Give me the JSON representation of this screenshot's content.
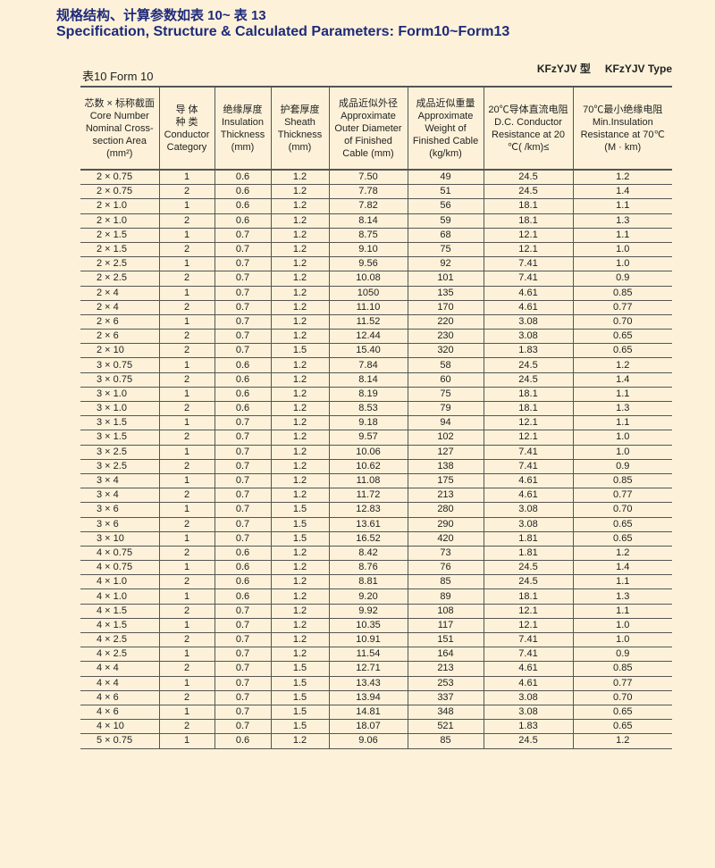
{
  "title_cn": "规格结构、计算参数如表 10~ 表 13",
  "title_en": "Specification, Structure & Calculated Parameters: Form10~Form13",
  "caption": "表10   Form 10",
  "type_cn": "KFzYJV 型",
  "type_en": "KFzYJV Type",
  "headers": [
    "芯数 × 标称截面\nCore Number\nNominal Cross-\nsection Area\n(mm²)",
    "导 体\n种 类\nConductor\nCategory",
    "绝缘厚度\nInsulation\nThickness\n(mm)",
    "护套厚度\nSheath\nThickness\n(mm)",
    "成品近似外径\nApproximate\nOuter Diameter\nof Finished\nCable (mm)",
    "成品近似重量\nApproximate\nWeight of\nFinished Cable\n(kg/km)",
    "20℃导体直流电阻\nD.C. Conductor\nResistance at 20\n℃(  /km)≤",
    "70℃最小绝缘电阻\nMin.Insulation\nResistance at 70℃\n(M   · km)"
  ],
  "rows": [
    [
      "2 × 0.75",
      "1",
      "0.6",
      "1.2",
      "7.50",
      "49",
      "24.5",
      "1.2"
    ],
    [
      "2 × 0.75",
      "2",
      "0.6",
      "1.2",
      "7.78",
      "51",
      "24.5",
      "1.4"
    ],
    [
      "2 × 1.0",
      "1",
      "0.6",
      "1.2",
      "7.82",
      "56",
      "18.1",
      "1.1"
    ],
    [
      "2 × 1.0",
      "2",
      "0.6",
      "1.2",
      "8.14",
      "59",
      "18.1",
      "1.3"
    ],
    [
      "2 × 1.5",
      "1",
      "0.7",
      "1.2",
      "8.75",
      "68",
      "12.1",
      "1.1"
    ],
    [
      "2 × 1.5",
      "2",
      "0.7",
      "1.2",
      "9.10",
      "75",
      "12.1",
      "1.0"
    ],
    [
      "2 × 2.5",
      "1",
      "0.7",
      "1.2",
      "9.56",
      "92",
      "7.41",
      "1.0"
    ],
    [
      "2 × 2.5",
      "2",
      "0.7",
      "1.2",
      "10.08",
      "101",
      "7.41",
      "0.9"
    ],
    [
      "2 × 4",
      "1",
      "0.7",
      "1.2",
      "1050",
      "135",
      "4.61",
      "0.85"
    ],
    [
      "2 × 4",
      "2",
      "0.7",
      "1.2",
      "11.10",
      "170",
      "4.61",
      "0.77"
    ],
    [
      "2 × 6",
      "1",
      "0.7",
      "1.2",
      "11.52",
      "220",
      "3.08",
      "0.70"
    ],
    [
      "2 × 6",
      "2",
      "0.7",
      "1.2",
      "12.44",
      "230",
      "3.08",
      "0.65"
    ],
    [
      "2 × 10",
      "2",
      "0.7",
      "1.5",
      "15.40",
      "320",
      "1.83",
      "0.65"
    ],
    [
      "3 × 0.75",
      "1",
      "0.6",
      "1.2",
      "7.84",
      "58",
      "24.5",
      "1.2"
    ],
    [
      "3 × 0.75",
      "2",
      "0.6",
      "1.2",
      "8.14",
      "60",
      "24.5",
      "1.4"
    ],
    [
      "3 × 1.0",
      "1",
      "0.6",
      "1.2",
      "8.19",
      "75",
      "18.1",
      "1.1"
    ],
    [
      "3 × 1.0",
      "2",
      "0.6",
      "1.2",
      "8.53",
      "79",
      "18.1",
      "1.3"
    ],
    [
      "3 × 1.5",
      "1",
      "0.7",
      "1.2",
      "9.18",
      "94",
      "12.1",
      "1.1"
    ],
    [
      "3 × 1.5",
      "2",
      "0.7",
      "1.2",
      "9.57",
      "102",
      "12.1",
      "1.0"
    ],
    [
      "3 × 2.5",
      "1",
      "0.7",
      "1.2",
      "10.06",
      "127",
      "7.41",
      "1.0"
    ],
    [
      "3 × 2.5",
      "2",
      "0.7",
      "1.2",
      "10.62",
      "138",
      "7.41",
      "0.9"
    ],
    [
      "3 × 4",
      "1",
      "0.7",
      "1.2",
      "11.08",
      "175",
      "4.61",
      "0.85"
    ],
    [
      "3 × 4",
      "2",
      "0.7",
      "1.2",
      "11.72",
      "213",
      "4.61",
      "0.77"
    ],
    [
      "3 × 6",
      "1",
      "0.7",
      "1.5",
      "12.83",
      "280",
      "3.08",
      "0.70"
    ],
    [
      "3 × 6",
      "2",
      "0.7",
      "1.5",
      "13.61",
      "290",
      "3.08",
      "0.65"
    ],
    [
      "3 × 10",
      "1",
      "0.7",
      "1.5",
      "16.52",
      "420",
      "1.81",
      "0.65"
    ],
    [
      "4 × 0.75",
      "2",
      "0.6",
      "1.2",
      "8.42",
      "73",
      "1.81",
      "1.2"
    ],
    [
      "4 × 0.75",
      "1",
      "0.6",
      "1.2",
      "8.76",
      "76",
      "24.5",
      "1.4"
    ],
    [
      "4 × 1.0",
      "2",
      "0.6",
      "1.2",
      "8.81",
      "85",
      "24.5",
      "1.1"
    ],
    [
      "4 × 1.0",
      "1",
      "0.6",
      "1.2",
      "9.20",
      "89",
      "18.1",
      "1.3"
    ],
    [
      "4 × 1.5",
      "2",
      "0.7",
      "1.2",
      "9.92",
      "108",
      "12.1",
      "1.1"
    ],
    [
      "4 × 1.5",
      "1",
      "0.7",
      "1.2",
      "10.35",
      "117",
      "12.1",
      "1.0"
    ],
    [
      "4 × 2.5",
      "2",
      "0.7",
      "1.2",
      "10.91",
      "151",
      "7.41",
      "1.0"
    ],
    [
      "4 × 2.5",
      "1",
      "0.7",
      "1.2",
      "11.54",
      "164",
      "7.41",
      "0.9"
    ],
    [
      "4 × 4",
      "2",
      "0.7",
      "1.5",
      "12.71",
      "213",
      "4.61",
      "0.85"
    ],
    [
      "4 × 4",
      "1",
      "0.7",
      "1.5",
      "13.43",
      "253",
      "4.61",
      "0.77"
    ],
    [
      "4 × 6",
      "2",
      "0.7",
      "1.5",
      "13.94",
      "337",
      "3.08",
      "0.70"
    ],
    [
      "4 × 6",
      "1",
      "0.7",
      "1.5",
      "14.81",
      "348",
      "3.08",
      "0.65"
    ],
    [
      "4 × 10",
      "2",
      "0.7",
      "1.5",
      "18.07",
      "521",
      "1.83",
      "0.65"
    ],
    [
      "5 × 0.75",
      "1",
      "0.6",
      "1.2",
      "9.06",
      "85",
      "24.5",
      "1.2"
    ]
  ]
}
